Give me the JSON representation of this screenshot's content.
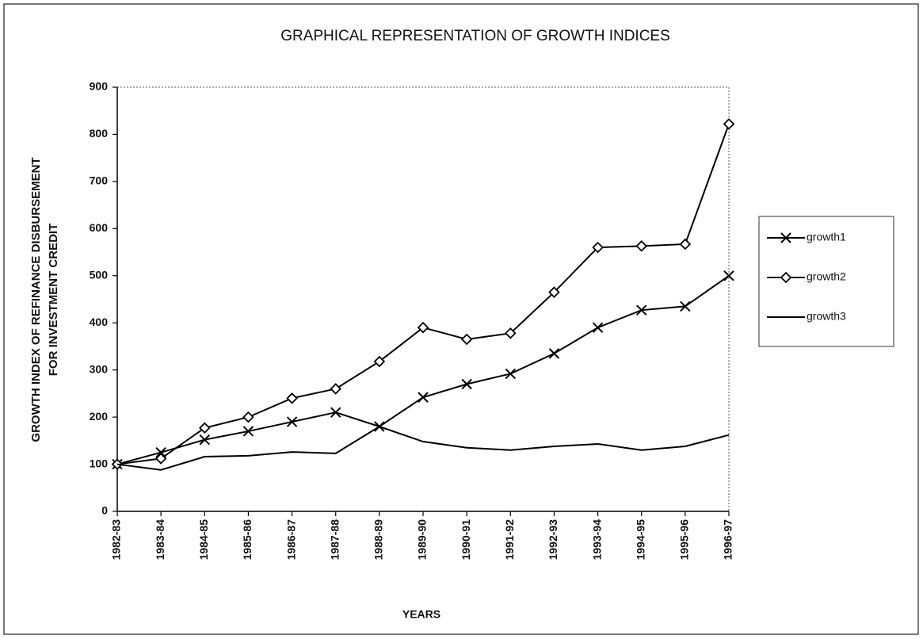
{
  "chart_data": {
    "type": "line",
    "title": "GRAPHICAL REPRESENTATION OF GROWTH INDICES",
    "xlabel": "YEARS",
    "ylabel": [
      "GROWTH INDEX OF REFINANCE DISBURSEMENT",
      "FOR INVESTMENT CREDIT"
    ],
    "categories": [
      "1982-83",
      "1983-84",
      "1984-85",
      "1985-86",
      "1986-87",
      "1987-88",
      "1988-89",
      "1989-90",
      "1990-91",
      "1991-92",
      "1992-93",
      "1993-94",
      "1994-95",
      "1995-96",
      "1996-97"
    ],
    "series": [
      {
        "name": "growth1",
        "color": "#000000",
        "marker": "x",
        "values": [
          100,
          125,
          152,
          170,
          190,
          210,
          180,
          242,
          270,
          292,
          335,
          390,
          427,
          435,
          500
        ]
      },
      {
        "name": "growth2",
        "color": "#000000",
        "marker": "diamond",
        "values": [
          100,
          112,
          177,
          200,
          240,
          260,
          318,
          390,
          365,
          378,
          465,
          560,
          563,
          567,
          822
        ]
      },
      {
        "name": "growth3",
        "color": "#000000",
        "marker": "none",
        "values": [
          100,
          88,
          116,
          118,
          126,
          123,
          180,
          148,
          135,
          130,
          138,
          143,
          130,
          138,
          162
        ]
      }
    ],
    "ylim": [
      0,
      900
    ],
    "yticks": [
      0,
      100,
      200,
      300,
      400,
      500,
      600,
      700,
      800,
      900
    ],
    "legend": "right"
  }
}
